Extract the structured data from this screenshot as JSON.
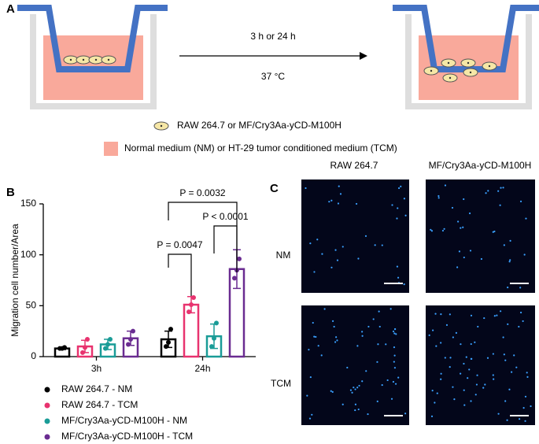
{
  "panel_a": {
    "label": "A",
    "arrow_top": "3 h or 24 h",
    "arrow_bottom": "37 °C",
    "legend": [
      "RAW 264.7 or MF/Cry3Aa-yCD-M100H",
      "Normal medium (NM) or HT-29 tumor conditioned medium (TCM)"
    ]
  },
  "chart_data": {
    "type": "bar",
    "panel_label": "B",
    "ylabel": "Migration cell number/Area",
    "categories": [
      "3h",
      "24h"
    ],
    "ylim": [
      0,
      150
    ],
    "yticks": [
      0,
      50,
      100,
      150
    ],
    "series": [
      {
        "name": "RAW 264.7 - NM",
        "color": "#000000",
        "values": [
          8,
          17
        ],
        "errors": [
          1,
          8
        ],
        "points": [
          [
            8,
            8,
            9
          ],
          [
            10,
            14,
            27
          ]
        ]
      },
      {
        "name": "RAW 264.7 - TCM",
        "color": "#e8336f",
        "values": [
          10,
          51
        ],
        "errors": [
          6,
          8
        ],
        "points": [
          [
            4,
            9,
            17
          ],
          [
            44,
            51,
            58
          ]
        ]
      },
      {
        "name": "MF/Cry3Aa-yCD-M100H - NM",
        "color": "#1a9c97",
        "values": [
          12,
          20
        ],
        "errors": [
          5,
          12
        ],
        "points": [
          [
            8,
            12,
            17
          ],
          [
            10,
            18,
            33
          ]
        ]
      },
      {
        "name": "MF/Cry3Aa-yCD-M100H - TCM",
        "color": "#6a2c91",
        "values": [
          18,
          86
        ],
        "errors": [
          7,
          19
        ],
        "points": [
          [
            12,
            17,
            25
          ],
          [
            77,
            85,
            96
          ]
        ]
      }
    ],
    "annotations": [
      "P = 0.0032",
      "P < 0.0001",
      "P = 0.0047"
    ]
  },
  "panel_c": {
    "label": "C",
    "columns": [
      "RAW 264.7",
      "MF/Cry3Aa-yCD-M100H"
    ],
    "rows": [
      "NM",
      "TCM"
    ]
  }
}
